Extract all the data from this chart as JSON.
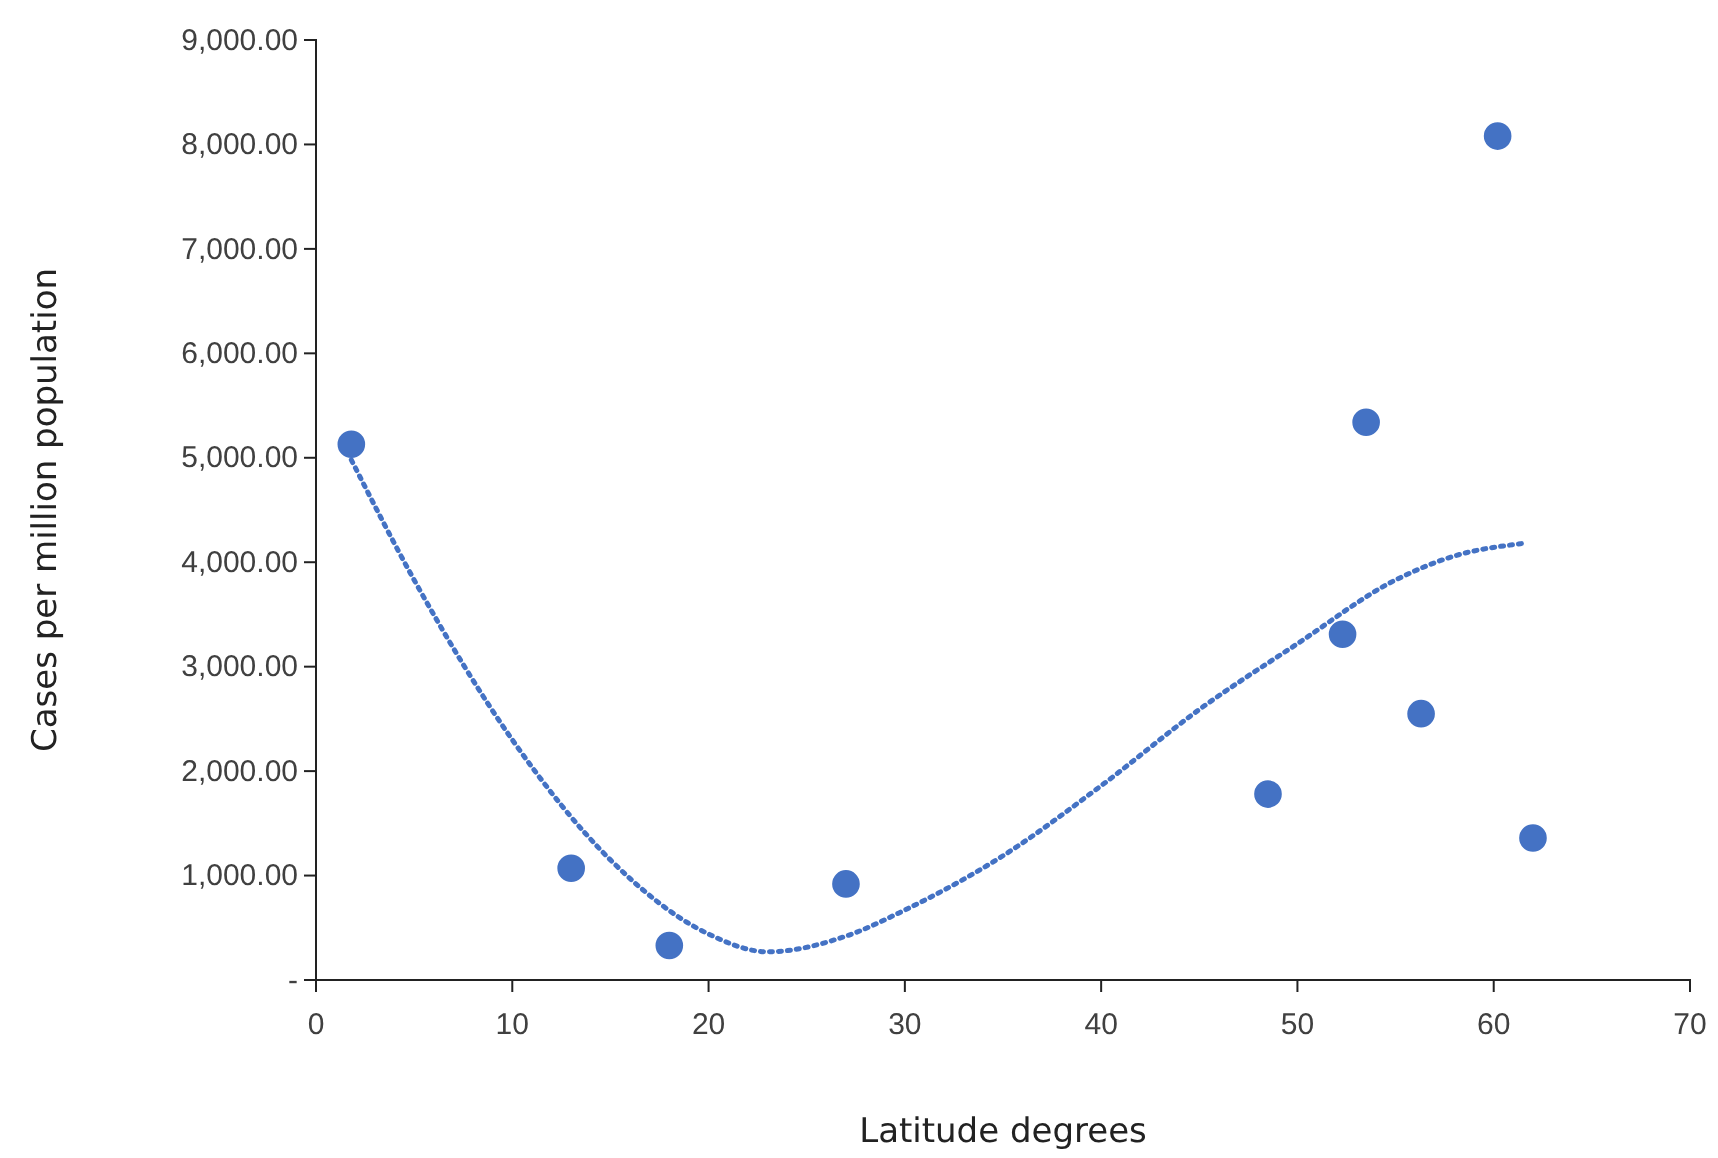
{
  "chart_data": {
    "type": "scatter",
    "xlabel": "Latitude degrees",
    "ylabel": "Cases per million population",
    "xlim": [
      0,
      70
    ],
    "xticks": [
      0,
      10,
      20,
      30,
      40,
      50,
      60,
      70
    ],
    "ylim": [
      0,
      9000
    ],
    "yticks": [
      {
        "value": 0,
        "label": "-"
      },
      {
        "value": 1000,
        "label": "1,000.00"
      },
      {
        "value": 2000,
        "label": "2,000.00"
      },
      {
        "value": 3000,
        "label": "3,000.00"
      },
      {
        "value": 4000,
        "label": "4,000.00"
      },
      {
        "value": 5000,
        "label": "5,000.00"
      },
      {
        "value": 6000,
        "label": "6,000.00"
      },
      {
        "value": 7000,
        "label": "7,000.00"
      },
      {
        "value": 8000,
        "label": "8,000.00"
      },
      {
        "value": 9000,
        "label": "9,000.00"
      }
    ],
    "grid": false,
    "marker": "circle",
    "series": [
      {
        "color": "#4472c4",
        "x": [
          1.8,
          13,
          18,
          27,
          48.5,
          52.3,
          53.5,
          56.3,
          60.2,
          62
        ],
        "values": [
          5130,
          1070,
          330,
          920,
          1780,
          3310,
          5340,
          2550,
          8080,
          1360
        ]
      },
      {
        "type": "line",
        "color": "#4472c4",
        "line_style": "dotted",
        "marker": "none",
        "x": [
          1.8,
          5,
          10,
          15,
          20,
          23,
          27,
          30,
          35,
          40,
          45,
          50,
          55,
          58,
          61.5
        ],
        "values": [
          4980,
          3830,
          2300,
          1150,
          440,
          270,
          420,
          670,
          1190,
          1860,
          2590,
          3220,
          3830,
          4060,
          4180
        ]
      }
    ]
  }
}
